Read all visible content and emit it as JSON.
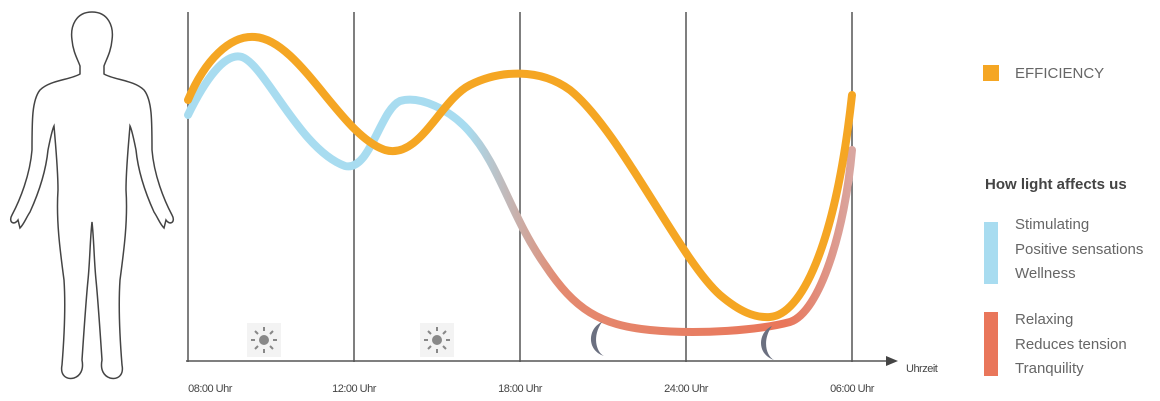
{
  "x_axis": {
    "labels": [
      "08:00 Uhr",
      "12:00 Uhr",
      "18:00 Uhr",
      "24:00 Uhr",
      "06:00 Uhr"
    ],
    "title": "Uhrzeit"
  },
  "legend": {
    "efficiency": "EFFICIENCY",
    "title": "How light affects us",
    "stimulating": [
      "Stimulating",
      "Positive sensations",
      "Wellness"
    ],
    "relaxing": [
      "Relaxing",
      "Reduces tension",
      "Tranquility"
    ]
  }
}
